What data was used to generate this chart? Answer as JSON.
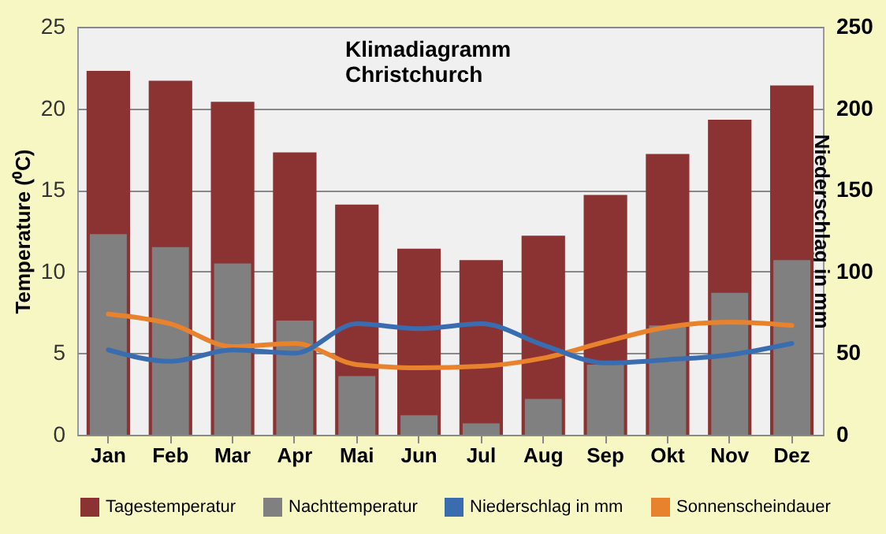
{
  "chart_data": {
    "type": "bar",
    "title": "Klimadiagramm\nChristchurch",
    "ylabel": "Temperature (⁰C)",
    "y2label": "Niederschlag in mm",
    "categories": [
      "Jan",
      "Feb",
      "Mar",
      "Apr",
      "Mai",
      "Jun",
      "Jul",
      "Aug",
      "Sep",
      "Okt",
      "Nov",
      "Dez"
    ],
    "series": [
      {
        "name": "Tagestemperatur",
        "color": "#8b3232",
        "values": [
          22.3,
          21.7,
          20.4,
          17.3,
          14.1,
          11.4,
          10.7,
          12.2,
          14.7,
          17.2,
          19.3,
          21.4
        ]
      },
      {
        "name": "Nachttemperatur",
        "color": "#808080",
        "values": [
          12.3,
          11.5,
          10.5,
          7.0,
          3.6,
          1.2,
          0.7,
          2.2,
          4.3,
          6.7,
          8.7,
          10.7
        ]
      },
      {
        "name": "Niederschlag in mm",
        "type": "line",
        "axis": "y2",
        "color": "#3a6cb0",
        "values": [
          52,
          45,
          52,
          50,
          68,
          65,
          68,
          55,
          44,
          46,
          49,
          56
        ]
      },
      {
        "name": "Sonnenscheindauer",
        "type": "line",
        "color": "#e8822c",
        "values": [
          7.4,
          6.8,
          5.4,
          5.6,
          4.3,
          4.1,
          4.2,
          4.7,
          5.7,
          6.6,
          6.9,
          6.7
        ]
      }
    ],
    "ylim": [
      0,
      25
    ],
    "yticks": [
      0,
      5,
      10,
      15,
      20,
      25
    ],
    "y2lim": [
      0,
      250
    ],
    "y2ticks": [
      0,
      50,
      100,
      150,
      200,
      250
    ],
    "grid": "y",
    "legend": "bottom",
    "line_style": "solid",
    "marker": "none"
  }
}
